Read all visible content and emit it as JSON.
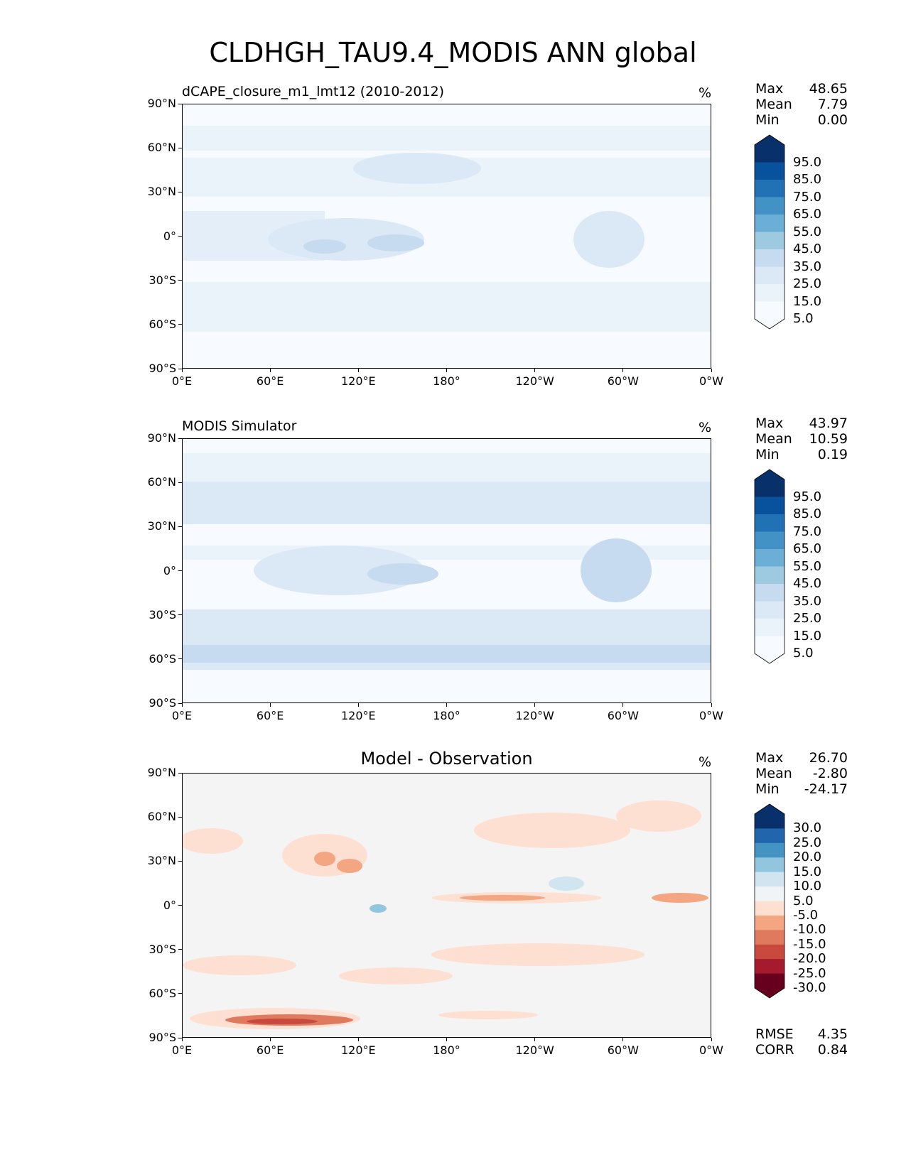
{
  "title": "CLDHGH_TAU9.4_MODIS ANN global",
  "axes": {
    "lat_labels": [
      "90°N",
      "60°N",
      "30°N",
      "0°",
      "30°S",
      "60°S",
      "90°S"
    ],
    "lon_labels": [
      "0°E",
      "60°E",
      "120°E",
      "180°",
      "120°W",
      "60°W",
      "0°W"
    ]
  },
  "panels": [
    {
      "title": "dCAPE_closure_m1_lmt12 (2010-2012)",
      "units": "%",
      "stats": [
        {
          "label": "Max",
          "value": "48.65"
        },
        {
          "label": "Mean",
          "value": "7.79"
        },
        {
          "label": "Min",
          "value": "0.00"
        }
      ],
      "colorbar": {
        "labels": [
          "95.0",
          "85.0",
          "75.0",
          "65.0",
          "55.0",
          "45.0",
          "35.0",
          "25.0",
          "15.0",
          "5.0"
        ],
        "colors": [
          "#08306b",
          "#08519c",
          "#2171b5",
          "#4292c6",
          "#6baed6",
          "#9ecae1",
          "#c6dbef",
          "#dbe9f6",
          "#eaf2fa",
          "#f7fbff"
        ]
      }
    },
    {
      "title": "MODIS Simulator",
      "units": "%",
      "stats": [
        {
          "label": "Max",
          "value": "43.97"
        },
        {
          "label": "Mean",
          "value": "10.59"
        },
        {
          "label": "Min",
          "value": "0.19"
        }
      ],
      "colorbar": {
        "labels": [
          "95.0",
          "85.0",
          "75.0",
          "65.0",
          "55.0",
          "45.0",
          "35.0",
          "25.0",
          "15.0",
          "5.0"
        ],
        "colors": [
          "#08306b",
          "#08519c",
          "#2171b5",
          "#4292c6",
          "#6baed6",
          "#9ecae1",
          "#c6dbef",
          "#dbe9f6",
          "#eaf2fa",
          "#f7fbff"
        ]
      }
    },
    {
      "title": "Model - Observation",
      "units": "%",
      "stats": [
        {
          "label": "Max",
          "value": "26.70"
        },
        {
          "label": "Mean",
          "value": "-2.80"
        },
        {
          "label": "Min",
          "value": "-24.17"
        }
      ],
      "colorbar": {
        "labels": [
          "30.0",
          "25.0",
          "20.0",
          "15.0",
          "10.0",
          "5.0",
          "-5.0",
          "-10.0",
          "-15.0",
          "-20.0",
          "-25.0",
          "-30.0"
        ],
        "colors": [
          "#08306b",
          "#2166ac",
          "#4393c3",
          "#92c5de",
          "#d1e5f0",
          "#f0f4f7",
          "#fde0d2",
          "#f4a582",
          "#e07a5f",
          "#c84a3e",
          "#a51a2d",
          "#67001f"
        ]
      },
      "error_stats": [
        {
          "label": "RMSE",
          "value": "4.35"
        },
        {
          "label": "CORR",
          "value": "0.84"
        }
      ]
    }
  ]
}
